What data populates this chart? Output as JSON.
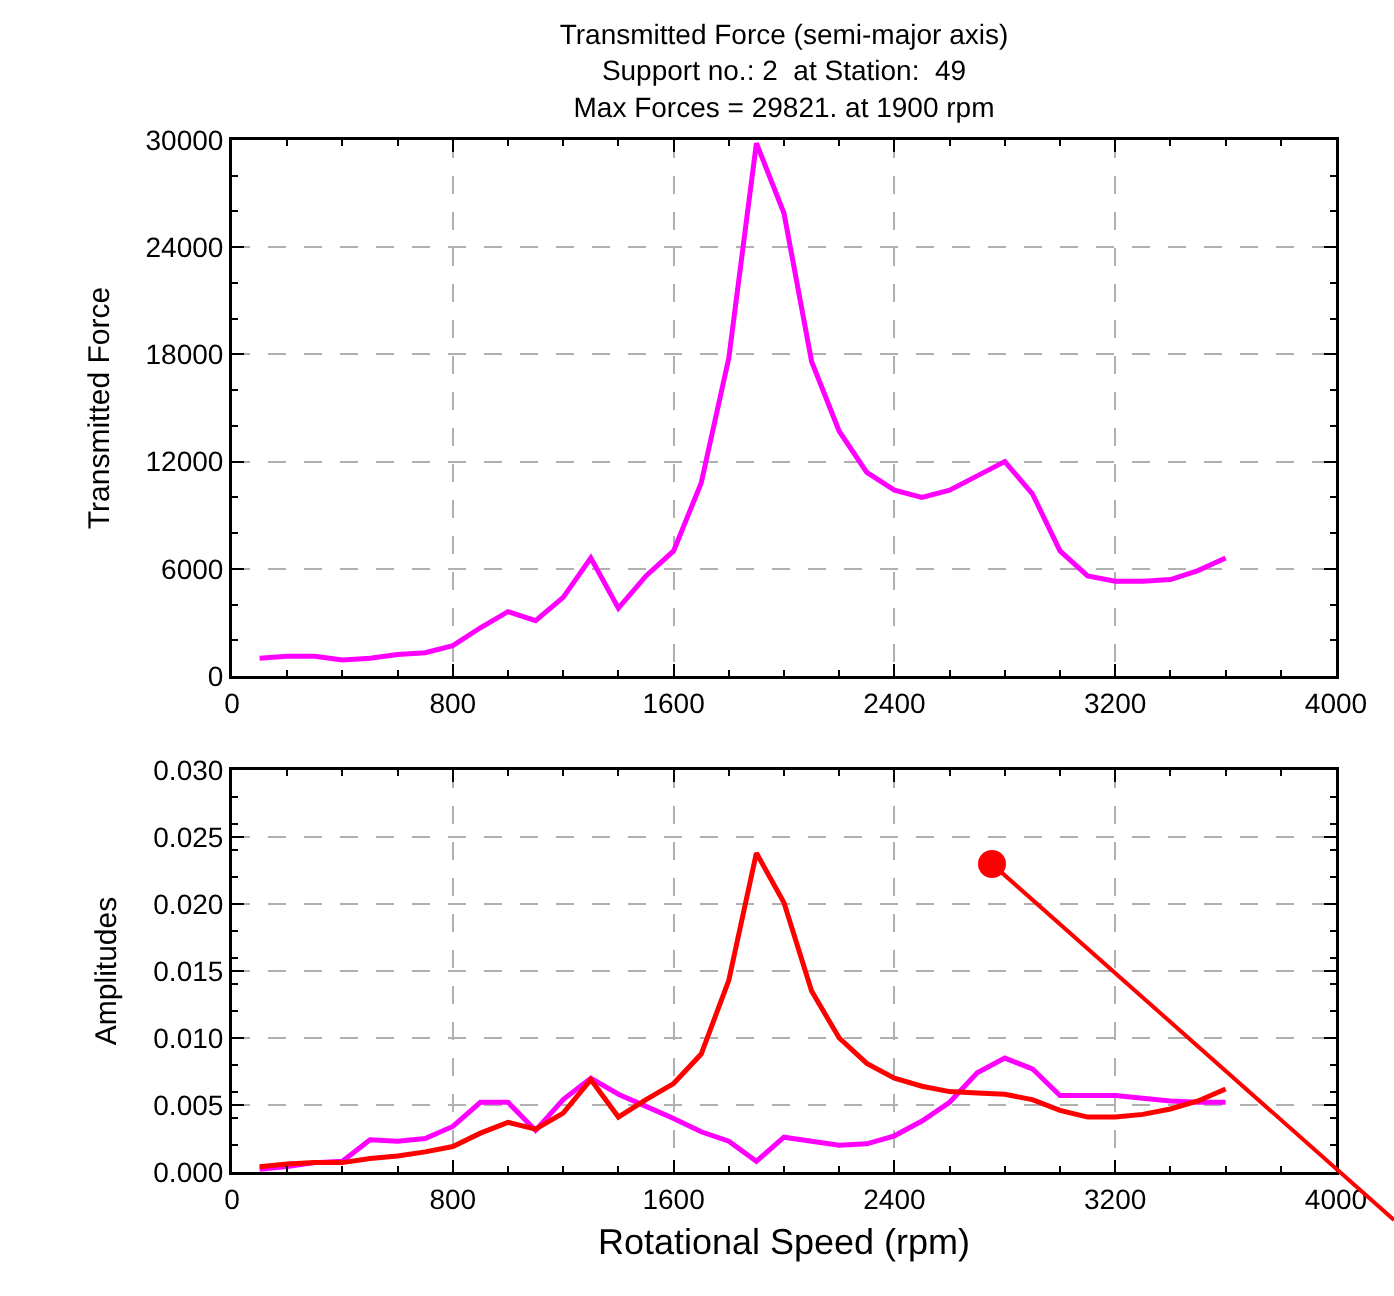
{
  "chart_data": [
    {
      "type": "line",
      "title": "Transmitted Force (semi-major axis)",
      "subtitle": "Support no.: 2  at Station:  49\nMax Forces = 29821. at 1900 rpm",
      "ylabel": "Transmitted Force",
      "x": [
        100,
        200,
        300,
        400,
        500,
        600,
        700,
        800,
        900,
        1000,
        1100,
        1200,
        1300,
        1400,
        1500,
        1600,
        1700,
        1800,
        1900,
        2000,
        2100,
        2200,
        2300,
        2400,
        2500,
        2600,
        2700,
        2800,
        2900,
        3000,
        3100,
        3200,
        3300,
        3400,
        3500,
        3600
      ],
      "series": [
        {
          "color": "#ff00ff",
          "values": [
            1000,
            1100,
            1100,
            900,
            1000,
            1200,
            1300,
            1700,
            2700,
            3600,
            3100,
            4400,
            6600,
            3800,
            5600,
            7000,
            10800,
            17800,
            29821,
            25900,
            17600,
            13700,
            11400,
            10400,
            10000,
            10400,
            11200,
            12000,
            10200,
            7000,
            5600,
            5300,
            5300,
            5400,
            5900,
            6600
          ]
        }
      ],
      "xlim": [
        0,
        4000
      ],
      "xticks": [
        0,
        800,
        1600,
        2400,
        3200,
        4000
      ],
      "ylim": [
        0,
        30000
      ],
      "yticks": [
        0,
        6000,
        12000,
        18000,
        24000,
        30000
      ],
      "grid": true,
      "marker": "none",
      "line_style": "solid"
    },
    {
      "type": "line",
      "xlabel": "Rotational Speed (rpm)",
      "ylabel": "Amplitudes",
      "x": [
        100,
        200,
        300,
        400,
        500,
        600,
        700,
        800,
        900,
        1000,
        1100,
        1200,
        1300,
        1400,
        1500,
        1600,
        1700,
        1800,
        1900,
        2000,
        2100,
        2200,
        2300,
        2400,
        2500,
        2600,
        2700,
        2800,
        2900,
        3000,
        3100,
        3200,
        3300,
        3400,
        3500,
        3600
      ],
      "series": [
        {
          "color": "#ff00ff",
          "values": [
            0.0002,
            0.0004,
            0.0007,
            0.0008,
            0.0024,
            0.0023,
            0.0025,
            0.0034,
            0.0052,
            0.0052,
            0.0031,
            0.0054,
            0.007,
            0.0058,
            0.0049,
            0.004,
            0.003,
            0.0023,
            0.0008,
            0.0026,
            0.0023,
            0.002,
            0.0021,
            0.0027,
            0.0038,
            0.0052,
            0.0074,
            0.0085,
            0.0077,
            0.0057,
            0.0057,
            0.0057,
            0.0055,
            0.0053,
            0.0052,
            0.0052
          ]
        },
        {
          "color": "#ff0000",
          "values": [
            0.0004,
            0.0006,
            0.0007,
            0.0007,
            0.001,
            0.0012,
            0.0015,
            0.0019,
            0.0029,
            0.0037,
            0.0032,
            0.0044,
            0.0069,
            0.0041,
            0.0054,
            0.0066,
            0.0088,
            0.0143,
            0.0238,
            0.0201,
            0.0135,
            0.01,
            0.0081,
            0.007,
            0.0064,
            0.006,
            0.0059,
            0.0058,
            0.0054,
            0.0046,
            0.0041,
            0.0041,
            0.0043,
            0.0047,
            0.0053,
            0.0062
          ]
        }
      ],
      "xlim": [
        0,
        4000
      ],
      "xticks": [
        0,
        800,
        1600,
        2400,
        3200,
        4000
      ],
      "ylim": [
        0,
        0.03
      ],
      "yticks": [
        {
          "value": 0,
          "label": "0.000"
        },
        {
          "value": 0.005,
          "label": "0.005"
        },
        {
          "value": 0.01,
          "label": "0.010"
        },
        {
          "value": 0.015,
          "label": "0.015"
        },
        {
          "value": 0.02,
          "label": "0.020"
        },
        {
          "value": 0.025,
          "label": "0.025"
        },
        {
          "value": 0.03,
          "label": "0.030"
        }
      ],
      "grid": true,
      "marker": "none",
      "line_style": "solid"
    }
  ]
}
